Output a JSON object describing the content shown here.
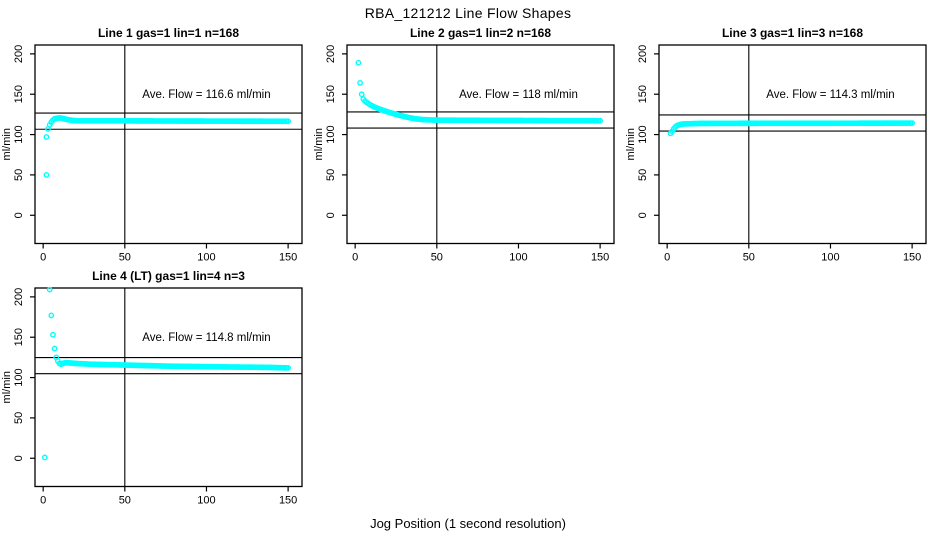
{
  "page_title": "RBA_121212  Line Flow Shapes",
  "x_axis_label": "Jog Position (1 second resolution)",
  "colors": {
    "marker": "#00FFFF",
    "axis": "#000000",
    "text": "#000000",
    "background": "#FFFFFF"
  },
  "chart_data": {
    "type": "scatter",
    "layout": "2-rows-3-cols, plots 1-3 top row, plot 4 bottom-left",
    "shared_xlabel": "Jog Position (1 second resolution)",
    "shared_ylabel": "ml/min",
    "marker": "open-circle",
    "grid": false,
    "subplots": [
      {
        "row": 0,
        "col": 0,
        "line": 1,
        "title": "Line 1 gas=1 lin=1 n=168",
        "annotation": "Ave. Flow =  116.6  ml/min",
        "annotation_pos": [
          100,
          150
        ],
        "ave_flow": 116.6,
        "ylabel": "ml/min",
        "xticks": [
          0,
          50,
          100,
          150
        ],
        "yticks": [
          0,
          50,
          100,
          150,
          200
        ],
        "xlim": [
          -5,
          158.5
        ],
        "ylim": [
          -35,
          211
        ],
        "vline_x": 50,
        "hlines": [
          126.6,
          106.6
        ],
        "outlier_points": [
          [
            2,
            50
          ],
          [
            2,
            97
          ]
        ],
        "band": {
          "x_start": 3,
          "x_end": 150,
          "x_step": 1,
          "keypoints": [
            [
              3,
              107
            ],
            [
              4,
              112
            ],
            [
              5,
              115.5
            ],
            [
              6,
              118
            ],
            [
              7,
              119.5
            ],
            [
              9,
              120.5
            ],
            [
              11,
              120.5
            ],
            [
              13,
              119.5
            ],
            [
              15,
              118.5
            ],
            [
              18,
              117.5
            ],
            [
              22,
              117
            ],
            [
              40,
              117
            ],
            [
              80,
              116.8
            ],
            [
              120,
              116.6
            ],
            [
              150,
              116.5
            ]
          ]
        }
      },
      {
        "row": 0,
        "col": 1,
        "line": 2,
        "title": "Line 2 gas=1 lin=2 n=168",
        "annotation": "Ave. Flow =  118  ml/min",
        "annotation_pos": [
          100,
          150
        ],
        "ave_flow": 118,
        "ylabel": "ml/min",
        "xticks": [
          0,
          50,
          100,
          150
        ],
        "yticks": [
          0,
          50,
          100,
          150,
          200
        ],
        "xlim": [
          -5,
          158.5
        ],
        "ylim": [
          -35,
          211
        ],
        "vline_x": 50,
        "hlines": [
          128,
          108
        ],
        "outlier_points": [
          [
            2,
            189
          ],
          [
            3,
            164
          ],
          [
            4,
            150
          ]
        ],
        "band": {
          "x_start": 5,
          "x_end": 150,
          "x_step": 1,
          "keypoints": [
            [
              5,
              144
            ],
            [
              6,
              141.5
            ],
            [
              8,
              138.5
            ],
            [
              10,
              136
            ],
            [
              12,
              134
            ],
            [
              15,
              131.5
            ],
            [
              18,
              129.5
            ],
            [
              21,
              127.5
            ],
            [
              25,
              125
            ],
            [
              29,
              123
            ],
            [
              33,
              121
            ],
            [
              37,
              119.5
            ],
            [
              42,
              118.5
            ],
            [
              48,
              118
            ],
            [
              60,
              117.8
            ],
            [
              80,
              117.6
            ],
            [
              100,
              117.5
            ],
            [
              120,
              117.3
            ],
            [
              150,
              117.2
            ]
          ]
        }
      },
      {
        "row": 0,
        "col": 2,
        "line": 3,
        "title": "Line 3 gas=1 lin=3 n=168",
        "annotation": "Ave. Flow =  114.3  ml/min",
        "annotation_pos": [
          100,
          150
        ],
        "ave_flow": 114.3,
        "ylabel": "ml/min",
        "xticks": [
          0,
          50,
          100,
          150
        ],
        "yticks": [
          0,
          50,
          100,
          150,
          200
        ],
        "xlim": [
          -5,
          158.5
        ],
        "ylim": [
          -35,
          211
        ],
        "vline_x": 50,
        "hlines": [
          124.3,
          104.3
        ],
        "outlier_points": [],
        "band": {
          "x_start": 2,
          "x_end": 150,
          "x_step": 1,
          "keypoints": [
            [
              2,
              101.5
            ],
            [
              3,
              104
            ],
            [
              4,
              107
            ],
            [
              5,
              109.5
            ],
            [
              6,
              111
            ],
            [
              8,
              112.5
            ],
            [
              10,
              113.2
            ],
            [
              20,
              113.8
            ],
            [
              60,
              114
            ],
            [
              100,
              114
            ],
            [
              150,
              114.2
            ]
          ]
        }
      },
      {
        "row": 1,
        "col": 0,
        "line": 4,
        "title": "Line 4 (LT) gas=1 lin=4 n=3",
        "annotation": "Ave. Flow =  114.8  ml/min",
        "annotation_pos": [
          100,
          150
        ],
        "ave_flow": 114.8,
        "ylabel": "ml/min",
        "xticks": [
          0,
          50,
          100,
          150
        ],
        "yticks": [
          0,
          50,
          100,
          150,
          200
        ],
        "xlim": [
          -5,
          158.5
        ],
        "ylim": [
          -35,
          211
        ],
        "vline_x": 50,
        "hlines": [
          124.8,
          104.8
        ],
        "outlier_points": [
          [
            1,
            1
          ],
          [
            4,
            209
          ],
          [
            5,
            177
          ],
          [
            6,
            153
          ],
          [
            7,
            136
          ],
          [
            8,
            125
          ]
        ],
        "band": {
          "x_start": 9,
          "x_end": 150,
          "x_step": 1,
          "keypoints": [
            [
              9,
              120.5
            ],
            [
              10,
              117.5
            ],
            [
              11,
              116.5
            ],
            [
              12,
              117.5
            ],
            [
              14,
              118.5
            ],
            [
              17,
              118
            ],
            [
              20,
              117.5
            ],
            [
              25,
              117
            ],
            [
              30,
              116.5
            ],
            [
              40,
              116
            ],
            [
              50,
              115.5
            ],
            [
              60,
              115
            ],
            [
              70,
              114.5
            ],
            [
              80,
              114
            ],
            [
              90,
              113.8
            ],
            [
              100,
              113.5
            ],
            [
              110,
              113.2
            ],
            [
              120,
              113
            ],
            [
              130,
              112.8
            ],
            [
              140,
              112.5
            ],
            [
              150,
              112
            ]
          ]
        }
      }
    ]
  }
}
